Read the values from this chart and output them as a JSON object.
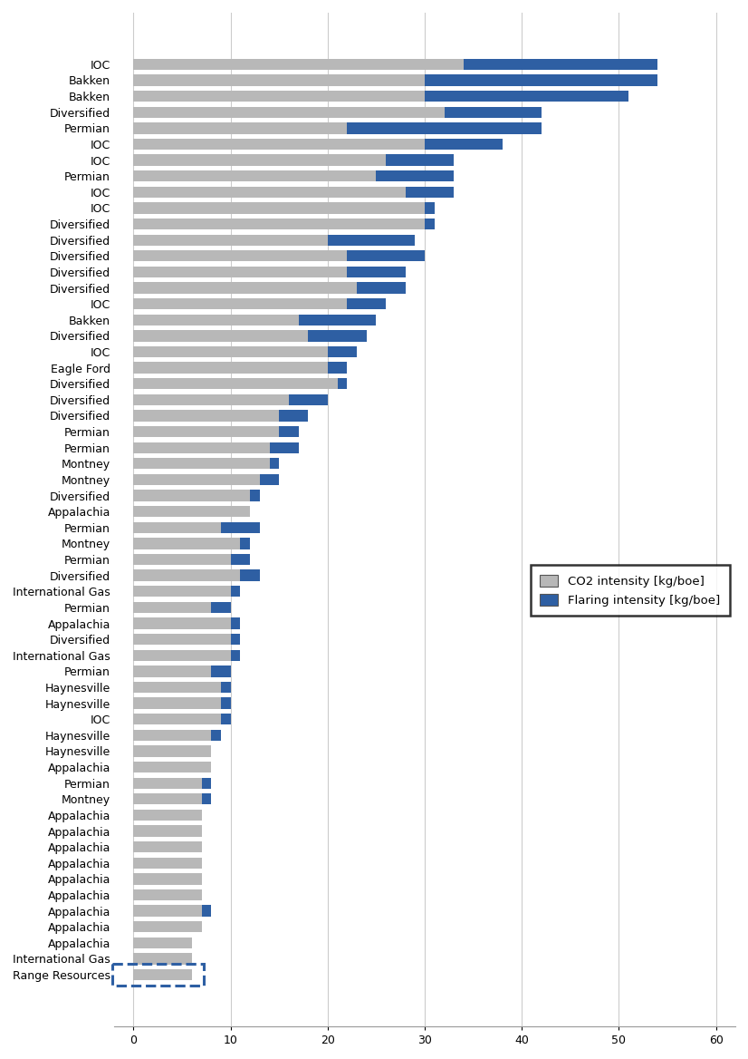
{
  "categories": [
    "IOC",
    "Bakken",
    "Bakken",
    "Diversified",
    "Permian",
    "IOC",
    "IOC",
    "Permian",
    "IOC",
    "IOC",
    "Diversified",
    "Diversified",
    "Diversified",
    "Diversified",
    "Diversified",
    "IOC",
    "Bakken",
    "Diversified",
    "IOC",
    "Eagle Ford",
    "Diversified",
    "Diversified",
    "Diversified",
    "Permian",
    "Permian",
    "Montney",
    "Montney",
    "Diversified",
    "Appalachia",
    "Permian",
    "Montney",
    "Permian",
    "Diversified",
    "International Gas",
    "Permian",
    "Appalachia",
    "Diversified",
    "International Gas",
    "Permian",
    "Haynesville",
    "Haynesville",
    "IOC",
    "Haynesville",
    "Haynesville",
    "Appalachia",
    "Permian",
    "Montney",
    "Appalachia",
    "Appalachia",
    "Appalachia",
    "Appalachia",
    "Appalachia",
    "Appalachia",
    "Appalachia",
    "Appalachia",
    "Appalachia",
    "International Gas",
    "Range Resources"
  ],
  "co2_values": [
    34,
    30,
    30,
    32,
    22,
    30,
    26,
    25,
    28,
    30,
    30,
    20,
    22,
    22,
    23,
    22,
    17,
    18,
    20,
    20,
    21,
    16,
    15,
    15,
    14,
    14,
    13,
    12,
    12,
    9,
    11,
    10,
    11,
    10,
    8,
    10,
    10,
    10,
    8,
    9,
    9,
    9,
    8,
    8,
    8,
    7,
    7,
    7,
    7,
    7,
    7,
    7,
    7,
    7,
    7,
    6,
    6,
    6
  ],
  "flaring_values": [
    20,
    24,
    21,
    10,
    20,
    8,
    7,
    8,
    5,
    1,
    1,
    9,
    8,
    6,
    5,
    4,
    8,
    6,
    3,
    2,
    1,
    4,
    3,
    2,
    3,
    1,
    2,
    1,
    0,
    4,
    1,
    2,
    2,
    1,
    2,
    1,
    1,
    1,
    2,
    1,
    1,
    1,
    1,
    0,
    0,
    1,
    1,
    0,
    0,
    0,
    0,
    0,
    0,
    1,
    0,
    0,
    0,
    0
  ],
  "co2_color": "#b8b8b8",
  "flaring_color": "#2e5fa3",
  "background_color": "#ffffff",
  "xlim": [
    -2,
    62
  ],
  "xticks": [
    0,
    10,
    20,
    30,
    40,
    50,
    60
  ],
  "legend_labels": [
    "CO2 intensity [kg/boe]",
    "Flaring intensity [kg/boe]"
  ],
  "bar_height": 0.7,
  "axis_fontsize": 9,
  "legend_fontsize": 9.5
}
